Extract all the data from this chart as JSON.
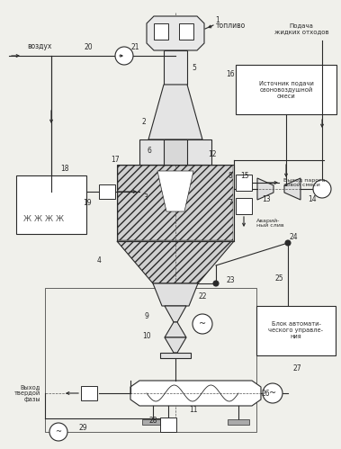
{
  "bg_color": "#f0f0eb",
  "lc": "#2a2a2a",
  "labels": {
    "vozdukh": "воздух",
    "toplivo": "топливо",
    "podacha": "Подача\nжидких отходов",
    "istochnik": "Источник подачи\nозоновоздушной\nсмеси",
    "vyhod_para": "Выход парога-\nзовой смеси",
    "avar": "Аварий-\nный слив",
    "vyhod_tv": "Выход\nтвердой\nфазы",
    "blok": "Блок автомати-\nческого управле-\nния"
  }
}
